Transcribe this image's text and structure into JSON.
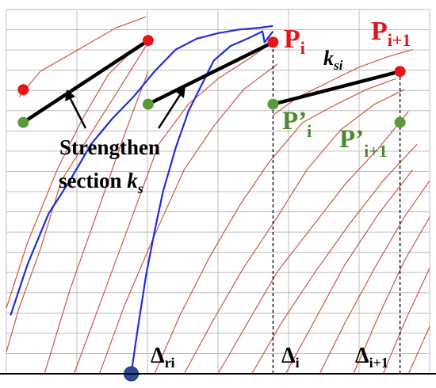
{
  "colors": {
    "grid": "#bdbdbd",
    "red_curves": "#d2553f",
    "blue_curve": "#1f2fd6",
    "red_point": "#e8141c",
    "green_point": "#5a9a3a",
    "blue_point": "#2b4a9a",
    "black": "#000000",
    "green_text": "#4d8a2e",
    "red_text": "#e0141c"
  },
  "chart_data": {
    "type": "line",
    "title": "",
    "xlabel": "",
    "ylabel": "",
    "xlim": [
      0,
      10
    ],
    "ylim": [
      0,
      10
    ],
    "grid": true,
    "series": [
      {
        "color": "blue",
        "x": [
          2.95,
          3.1,
          3.3,
          3.5,
          3.7,
          4.0,
          4.3,
          4.6,
          4.9,
          5.3,
          5.7,
          6.05,
          6.1,
          6.3
        ],
        "y": [
          0.0,
          1.2,
          2.7,
          3.9,
          5.0,
          6.2,
          7.2,
          7.9,
          8.6,
          9.0,
          9.2,
          9.4,
          9.1,
          9.4
        ]
      },
      {
        "color": "blue",
        "x": [
          0.1,
          0.5,
          1.0,
          1.5,
          2.0,
          2.5,
          3.0,
          3.5,
          4.0,
          4.5,
          5.0,
          5.5,
          6.0,
          6.3
        ],
        "y": [
          1.6,
          3.0,
          4.4,
          5.3,
          6.3,
          7.0,
          7.6,
          8.3,
          8.9,
          9.2,
          9.35,
          9.45,
          9.5,
          9.55
        ]
      },
      {
        "color": "red",
        "x": [
          0.0,
          0.3,
          0.8,
          1.3,
          2.0,
          2.6,
          3.3
        ],
        "y": [
          0.6,
          1.8,
          3.4,
          5.3,
          6.6,
          7.7,
          9.0
        ]
      },
      {
        "color": "red",
        "x": [
          0.0,
          0.5,
          1.2,
          1.8,
          2.4,
          3.0,
          3.35
        ],
        "y": [
          1.8,
          3.6,
          5.6,
          7.0,
          8.2,
          8.9,
          9.1
        ]
      },
      {
        "color": "red",
        "x": [
          0.9,
          1.5,
          2.2,
          2.8,
          3.35
        ],
        "y": [
          0.0,
          2.3,
          4.6,
          6.6,
          8.3
        ]
      },
      {
        "color": "red",
        "x": [
          1.6,
          2.3,
          3.0,
          3.6,
          4.3,
          5.0,
          5.8,
          6.4
        ],
        "y": [
          0.0,
          2.2,
          4.4,
          6.3,
          7.4,
          8.1,
          8.7,
          9.2
        ]
      },
      {
        "color": "red",
        "x": [
          2.2,
          2.8,
          3.5,
          4.2,
          4.9,
          5.6,
          6.4
        ],
        "y": [
          0.0,
          1.9,
          3.8,
          5.6,
          6.8,
          7.8,
          8.5
        ]
      },
      {
        "color": "red",
        "x": [
          3.5,
          4.1,
          4.8,
          5.5,
          6.2,
          7.0,
          7.8,
          8.5,
          9.2
        ],
        "y": [
          0.0,
          1.6,
          3.2,
          4.6,
          5.8,
          6.9,
          7.4,
          7.8,
          8.1
        ]
      },
      {
        "color": "red",
        "x": [
          4.2,
          4.9,
          5.6,
          6.4,
          7.1,
          7.9,
          8.7,
          9.4
        ],
        "y": [
          0.0,
          1.5,
          2.9,
          4.3,
          5.6,
          6.7,
          7.4,
          7.8
        ]
      },
      {
        "color": "red",
        "x": [
          5.0,
          5.7,
          6.4,
          7.2,
          8.0,
          8.8,
          9.5
        ],
        "y": [
          0.0,
          1.4,
          2.8,
          4.0,
          5.2,
          6.2,
          7.2
        ]
      },
      {
        "color": "red",
        "x": [
          5.8,
          6.5,
          7.3,
          8.1,
          8.9,
          9.7
        ],
        "y": [
          0.0,
          1.4,
          2.8,
          4.1,
          5.3,
          6.3
        ]
      },
      {
        "color": "red",
        "x": [
          6.6,
          7.3,
          8.0,
          8.8,
          9.6
        ],
        "y": [
          0.0,
          1.5,
          3.0,
          4.4,
          5.6
        ]
      },
      {
        "color": "red",
        "x": [
          7.4,
          8.0,
          8.7,
          9.4,
          10.0
        ],
        "y": [
          0.0,
          1.4,
          2.9,
          4.3,
          5.3
        ]
      },
      {
        "color": "red",
        "x": [
          8.2,
          8.8,
          9.4,
          10.0
        ],
        "y": [
          0.0,
          1.6,
          3.1,
          4.3
        ]
      },
      {
        "color": "red",
        "x": [
          8.9,
          9.4,
          10.0
        ],
        "y": [
          0.0,
          1.4,
          2.9
        ]
      },
      {
        "color": "red",
        "x": [
          9.5,
          10.0
        ],
        "y": [
          0.0,
          1.3
        ]
      },
      {
        "color": "red",
        "x": [
          0.3,
          0.8,
          1.4,
          2.0,
          2.6,
          3.3
        ],
        "y": [
          7.6,
          8.3,
          8.7,
          9.1,
          9.5,
          9.8
        ]
      },
      {
        "color": "red",
        "x": [
          6.3,
          6.9,
          7.6,
          8.3,
          9.0,
          9.6
        ],
        "y": [
          7.1,
          7.6,
          8.0,
          8.4,
          8.7,
          8.9
        ]
      }
    ],
    "strengthen_lines": [
      {
        "x1": 0.4,
        "y1": 6.9,
        "x2": 3.35,
        "y2": 9.15
      },
      {
        "x1": 3.35,
        "y1": 7.4,
        "x2": 6.3,
        "y2": 9.1
      },
      {
        "x1": 6.3,
        "y1": 7.4,
        "x2": 9.3,
        "y2": 8.3
      }
    ],
    "points": [
      {
        "color": "red",
        "x": 0.4,
        "y": 7.8
      },
      {
        "color": "red",
        "x": 3.35,
        "y": 9.15
      },
      {
        "color": "red",
        "x": 6.3,
        "y": 9.1
      },
      {
        "color": "red",
        "x": 9.3,
        "y": 8.3
      },
      {
        "color": "green",
        "x": 0.4,
        "y": 6.9
      },
      {
        "color": "green",
        "x": 3.35,
        "y": 7.4
      },
      {
        "color": "green",
        "x": 6.3,
        "y": 7.4
      },
      {
        "color": "green",
        "x": 9.3,
        "y": 6.9
      },
      {
        "color": "blue",
        "x": 2.95,
        "y": 0.0
      }
    ],
    "dashed_lines": [
      {
        "x": 6.3,
        "y1": 0.0,
        "y2": 9.1
      },
      {
        "x": 9.3,
        "y1": 0.0,
        "y2": 8.3
      }
    ],
    "annotations": {
      "strengthen_line1": "Strengthen",
      "strengthen_line2": "section ",
      "ks_k": "k",
      "ks_s": "s",
      "ksi_k": "k",
      "ksi_si": "si",
      "P": "P",
      "Pi_sub": "i",
      "Pi1_sub": "i+1",
      "Pprime": "P’",
      "Pprime_i_sub": "i",
      "Pprime_i1_sub": "i+1",
      "Delta": "Δ",
      "delta_ri_sub": "ri",
      "delta_i_sub": "i",
      "delta_i1_sub": "i+1"
    }
  }
}
